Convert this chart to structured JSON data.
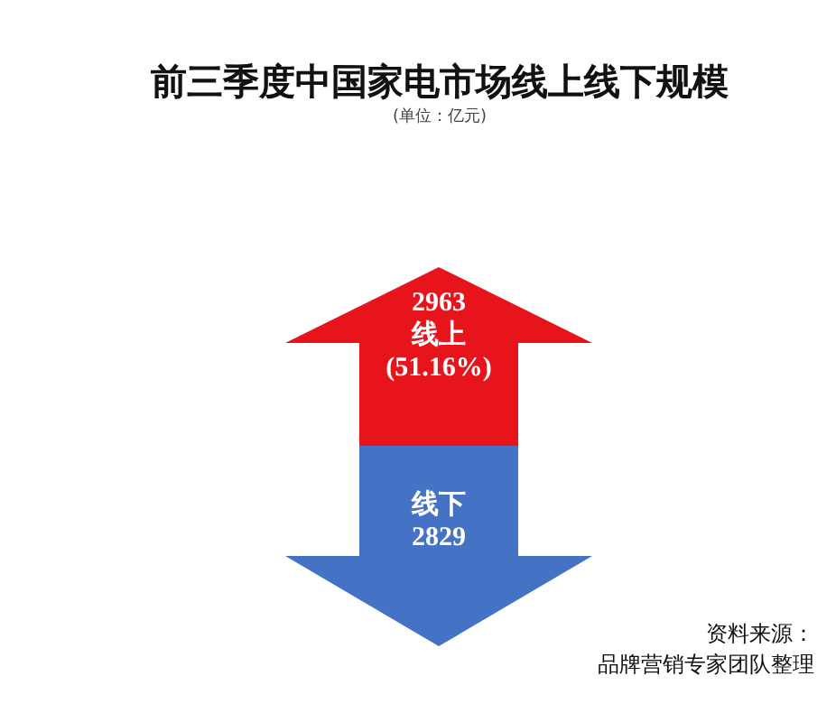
{
  "chart_data": {
    "type": "other",
    "title": "前三季度中国家电市场线上线下规模",
    "subtitle": "(单位：亿元)",
    "categories": [
      "线上",
      "线下"
    ],
    "values": [
      2963,
      2829
    ],
    "colors": [
      "#e8141b",
      "#4472c4"
    ],
    "data_labels": true,
    "annotations": [
      {
        "text": "(51.16%)",
        "x": "线上"
      },
      "资料来源：",
      "品牌营销专家团队整理"
    ]
  }
}
